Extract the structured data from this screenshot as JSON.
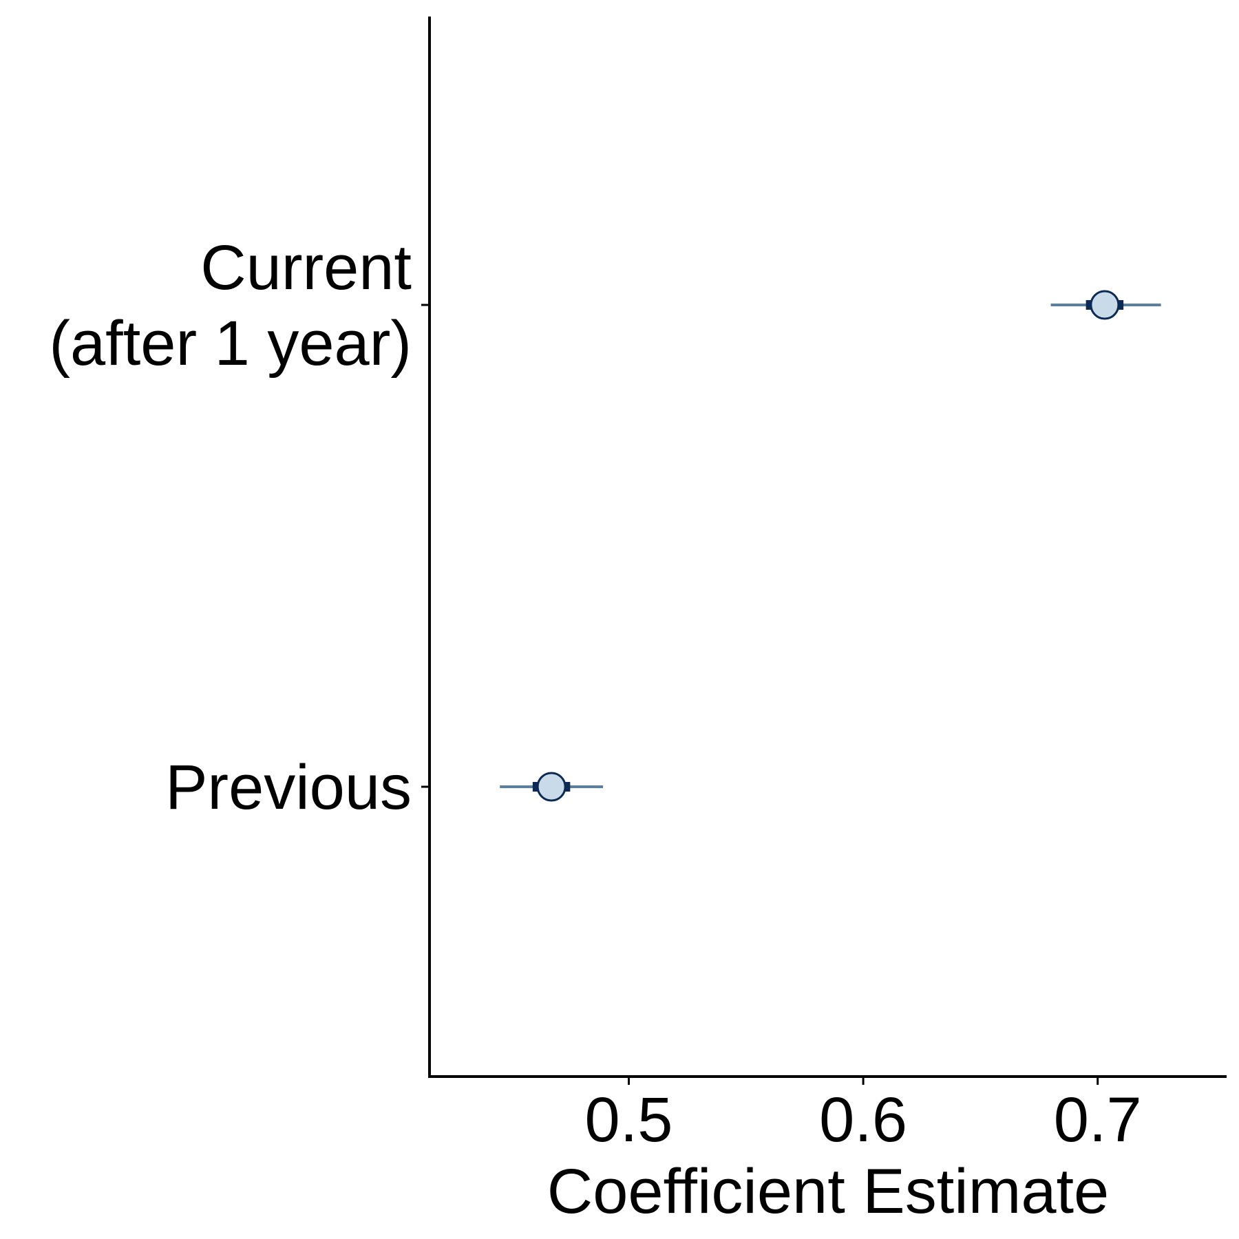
{
  "chart_data": {
    "type": "scatter",
    "subtype": "coefficient-plot",
    "title": "",
    "xlabel": "Coefficient Estimate",
    "ylabel": "",
    "xlim": [
      0.415,
      0.755
    ],
    "xticks": [
      0.5,
      0.6,
      0.7
    ],
    "xtick_labels": [
      "0.5",
      "0.6",
      "0.7"
    ],
    "categories": [
      {
        "label_lines": [
          "Current",
          "(after 1 year)"
        ]
      },
      {
        "label_lines": [
          "Previous"
        ]
      }
    ],
    "points": [
      {
        "category": 0,
        "estimate": 0.703,
        "ci_inner": [
          0.695,
          0.711
        ],
        "ci_outer": [
          0.68,
          0.727
        ]
      },
      {
        "category": 1,
        "estimate": 0.467,
        "ci_inner": [
          0.459,
          0.475
        ],
        "ci_outer": [
          0.445,
          0.489
        ]
      }
    ],
    "grid": false,
    "legend": "none",
    "colors": {
      "outer_ci": "#5a7fa0",
      "inner_ci": "#0d2a55",
      "point_fill": "#c9dbe8",
      "point_stroke": "#0d2a55"
    }
  }
}
